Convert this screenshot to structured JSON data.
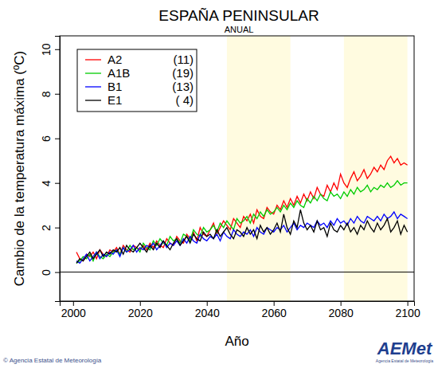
{
  "chart_data": {
    "type": "line",
    "title": "ESPAÑA PENINSULAR",
    "subtitle": "ANUAL",
    "x_label": "Año",
    "y_label": "Cambio de la temperatura máxima (ºC)",
    "credit": "© Agencia Estatal de Meteorología",
    "logo": "AEMet",
    "logo_caption": "Agencia Estatal de Meteorología",
    "xlim": [
      1996,
      2102
    ],
    "xticks": [
      2000,
      2020,
      2040,
      2060,
      2080,
      2100
    ],
    "ylim": [
      -1.3,
      10.6
    ],
    "yticks": [
      0,
      2,
      4,
      6,
      8,
      10
    ],
    "grid": false,
    "legend": "upper left",
    "reference_line": 0,
    "periods": [
      [
        2046,
        2065
      ],
      [
        2081,
        2100
      ]
    ],
    "x": [
      2001,
      2002,
      2003,
      2004,
      2005,
      2006,
      2007,
      2008,
      2009,
      2010,
      2011,
      2012,
      2013,
      2014,
      2015,
      2016,
      2017,
      2018,
      2019,
      2020,
      2021,
      2022,
      2023,
      2024,
      2025,
      2026,
      2027,
      2028,
      2029,
      2030,
      2031,
      2032,
      2033,
      2034,
      2035,
      2036,
      2037,
      2038,
      2039,
      2040,
      2041,
      2042,
      2043,
      2044,
      2045,
      2046,
      2047,
      2048,
      2049,
      2050,
      2051,
      2052,
      2053,
      2054,
      2055,
      2056,
      2057,
      2058,
      2059,
      2060,
      2061,
      2062,
      2063,
      2064,
      2065,
      2066,
      2067,
      2068,
      2069,
      2070,
      2071,
      2072,
      2073,
      2074,
      2075,
      2076,
      2077,
      2078,
      2079,
      2080,
      2081,
      2082,
      2083,
      2084,
      2085,
      2086,
      2087,
      2088,
      2089,
      2090,
      2091,
      2092,
      2093,
      2094,
      2095,
      2096,
      2097,
      2098,
      2099,
      2100
    ],
    "series": [
      {
        "name": "A2",
        "color": "#ff0000",
        "runs": {
          "value": 11,
          "label": "(11)"
        },
        "values": [
          0.9,
          0.6,
          0.5,
          0.8,
          0.7,
          0.9,
          0.6,
          1.0,
          0.8,
          0.7,
          1.0,
          0.9,
          1.1,
          0.8,
          1.2,
          1.0,
          0.9,
          1.2,
          1.1,
          1.0,
          1.2,
          1.0,
          1.3,
          1.1,
          1.4,
          1.2,
          1.1,
          1.5,
          1.3,
          1.2,
          1.6,
          1.4,
          1.3,
          1.7,
          1.5,
          1.8,
          1.4,
          2.0,
          1.7,
          1.6,
          1.9,
          2.2,
          1.7,
          2.0,
          2.3,
          2.1,
          1.9,
          2.4,
          2.2,
          2.0,
          2.5,
          2.3,
          2.6,
          2.2,
          2.8,
          2.5,
          2.4,
          2.9,
          2.7,
          2.6,
          3.0,
          2.8,
          3.2,
          2.9,
          3.3,
          3.0,
          3.4,
          3.1,
          3.5,
          3.2,
          3.6,
          3.3,
          3.8,
          3.5,
          3.4,
          3.9,
          3.6,
          4.0,
          3.7,
          4.4,
          4.0,
          3.8,
          4.2,
          4.5,
          4.1,
          4.3,
          4.6,
          4.2,
          4.4,
          4.7,
          4.5,
          4.8,
          4.6,
          5.0,
          5.2,
          4.9,
          5.1,
          4.8,
          4.9,
          4.8
        ]
      },
      {
        "name": "A1B",
        "color": "#00cc00",
        "runs": {
          "value": 19,
          "label": "(19)"
        },
        "values": [
          0.4,
          0.5,
          0.7,
          0.6,
          0.8,
          0.5,
          0.9,
          0.7,
          0.6,
          0.8,
          0.7,
          0.9,
          1.0,
          0.8,
          1.1,
          0.9,
          1.2,
          1.0,
          1.1,
          0.9,
          1.3,
          1.1,
          1.0,
          1.4,
          1.2,
          1.5,
          1.3,
          1.2,
          1.6,
          1.4,
          1.5,
          1.3,
          1.7,
          1.6,
          1.4,
          1.9,
          1.7,
          1.6,
          2.0,
          1.8,
          1.9,
          2.1,
          1.8,
          2.2,
          2.0,
          2.3,
          2.1,
          1.9,
          2.4,
          2.2,
          2.3,
          2.5,
          2.2,
          2.6,
          2.4,
          2.7,
          2.5,
          2.8,
          2.6,
          2.7,
          2.9,
          2.7,
          3.0,
          2.8,
          3.1,
          2.9,
          3.2,
          3.0,
          2.9,
          3.3,
          3.1,
          3.4,
          3.2,
          3.5,
          3.3,
          3.2,
          3.6,
          3.4,
          3.5,
          3.3,
          3.6,
          3.4,
          3.7,
          3.5,
          3.8,
          3.6,
          3.7,
          3.9,
          3.6,
          3.8,
          3.7,
          3.9,
          3.8,
          4.0,
          3.8,
          3.9,
          4.1,
          3.9,
          4.0,
          4.0
        ]
      },
      {
        "name": "B1",
        "color": "#0000ff",
        "runs": {
          "value": 13,
          "label": "(13)"
        },
        "values": [
          0.5,
          0.4,
          0.6,
          0.8,
          0.5,
          0.7,
          0.9,
          0.6,
          0.8,
          0.7,
          0.9,
          0.8,
          1.0,
          0.7,
          1.1,
          0.9,
          1.0,
          1.2,
          0.9,
          1.1,
          1.0,
          1.2,
          1.1,
          1.3,
          1.0,
          1.2,
          1.4,
          1.1,
          1.3,
          1.2,
          1.4,
          1.2,
          1.5,
          1.3,
          1.6,
          1.4,
          1.3,
          1.7,
          1.5,
          1.4,
          1.6,
          1.5,
          1.7,
          1.4,
          1.8,
          1.6,
          1.5,
          1.9,
          1.7,
          1.6,
          1.8,
          1.7,
          1.9,
          1.6,
          2.0,
          1.8,
          1.7,
          2.0,
          1.9,
          1.8,
          2.0,
          1.9,
          2.1,
          1.8,
          2.0,
          2.2,
          1.9,
          2.1,
          2.0,
          2.2,
          2.1,
          2.0,
          2.3,
          2.1,
          2.2,
          2.0,
          2.3,
          2.1,
          2.4,
          2.2,
          2.3,
          2.1,
          2.4,
          2.2,
          2.5,
          2.3,
          2.2,
          2.5,
          2.4,
          2.3,
          2.5,
          2.3,
          2.6,
          2.4,
          2.5,
          2.7,
          2.4,
          2.6,
          2.5,
          2.4
        ]
      },
      {
        "name": "E1",
        "color": "#000000",
        "runs": {
          "value": 4,
          "label": "( 4)"
        },
        "values": [
          0.4,
          0.6,
          0.5,
          0.7,
          0.9,
          0.6,
          0.8,
          1.0,
          0.7,
          0.9,
          0.8,
          1.0,
          0.9,
          1.1,
          0.8,
          1.2,
          1.0,
          0.9,
          1.1,
          1.3,
          1.1,
          0.9,
          1.2,
          1.0,
          1.3,
          1.1,
          1.4,
          1.2,
          1.0,
          1.3,
          1.5,
          1.2,
          1.4,
          1.6,
          1.3,
          1.7,
          1.5,
          1.4,
          1.8,
          1.6,
          1.7,
          1.5,
          1.9,
          1.6,
          1.8,
          2.0,
          1.7,
          1.5,
          1.9,
          1.8,
          1.6,
          2.0,
          1.7,
          1.9,
          1.5,
          2.1,
          1.8,
          2.0,
          1.7,
          1.9,
          2.2,
          1.8,
          2.6,
          2.0,
          1.7,
          2.3,
          2.0,
          2.8,
          2.2,
          1.9,
          2.1,
          1.8,
          2.3,
          1.9,
          2.0,
          1.6,
          2.2,
          1.9,
          1.8,
          2.1,
          1.9,
          2.2,
          1.8,
          2.0,
          1.7,
          2.1,
          1.9,
          2.3,
          2.0,
          1.8,
          2.2,
          1.9,
          2.1,
          2.4,
          1.8,
          2.0,
          2.3,
          1.7,
          2.1,
          1.8
        ]
      }
    ]
  }
}
